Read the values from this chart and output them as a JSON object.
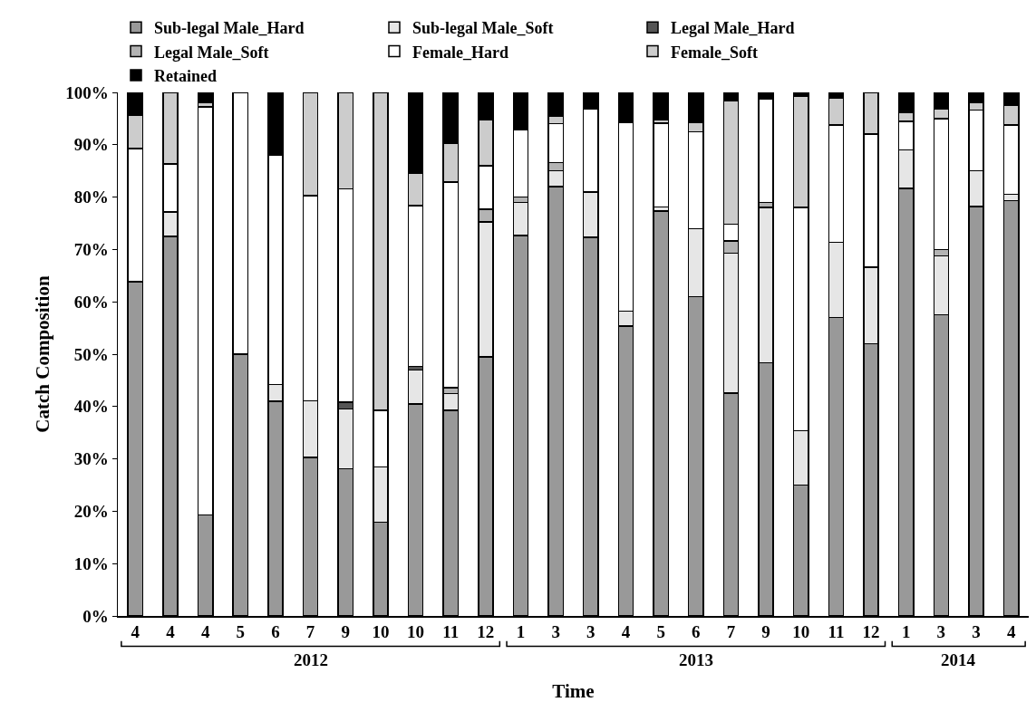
{
  "chart_data": {
    "type": "bar",
    "stacked": true,
    "xlabel": "Time",
    "ylabel": "Catch Composition",
    "categories": [
      "4",
      "4",
      "4",
      "5",
      "6",
      "7",
      "9",
      "10",
      "10",
      "11",
      "12",
      "1",
      "3",
      "3",
      "4",
      "5",
      "6",
      "7",
      "9",
      "10",
      "11",
      "12",
      "1",
      "3",
      "3",
      "4"
    ],
    "series": [
      {
        "name": "Sub-legal Male_Hard",
        "color": "#999999",
        "values": [
          63.8,
          72.5,
          19.3,
          50,
          41,
          30.3,
          28.1,
          17.9,
          40.5,
          39.3,
          49.5,
          72.7,
          82,
          72.3,
          55.4,
          77.3,
          61,
          42.6,
          48.4,
          25,
          57,
          52,
          81.7,
          57.5,
          78.2,
          79.3
        ]
      },
      {
        "name": "Sub-legal Male_Soft",
        "color": "#e6e6e6",
        "values": [
          null,
          4.7,
          null,
          null,
          3.2,
          10.8,
          11.4,
          10.6,
          6.5,
          3.2,
          25.8,
          6.3,
          3,
          8.7,
          2.8,
          0.8,
          13,
          26.7,
          29.6,
          10.4,
          14.4,
          14.6,
          7.3,
          11.3,
          6.8,
          1.2
        ]
      },
      {
        "name": "Legal Male_Hard",
        "color": "#555555",
        "values": [
          null,
          null,
          null,
          null,
          null,
          null,
          1.3,
          null,
          0.7,
          null,
          null,
          null,
          null,
          null,
          null,
          null,
          null,
          null,
          null,
          null,
          null,
          null,
          null,
          null,
          null,
          null
        ]
      },
      {
        "name": "Legal Male_Soft",
        "color": "#b3b3b3",
        "values": [
          null,
          null,
          null,
          null,
          null,
          null,
          null,
          null,
          null,
          1.1,
          2.4,
          1,
          1.6,
          null,
          null,
          null,
          null,
          2.3,
          1,
          null,
          null,
          null,
          null,
          1.2,
          null,
          null
        ]
      },
      {
        "name": "Female_Hard",
        "color": "#ffffff",
        "values": [
          25.5,
          9.1,
          77.9,
          50,
          43.9,
          39.2,
          40.8,
          10.8,
          30.7,
          39.3,
          8.3,
          12.8,
          7.4,
          15.9,
          36.1,
          16,
          18.5,
          3.2,
          19.8,
          42.6,
          22.4,
          25.4,
          5.5,
          25,
          11.6,
          13.3
        ]
      },
      {
        "name": "Female_Soft",
        "color": "#cccccc",
        "values": [
          6.4,
          13.7,
          0.8,
          null,
          null,
          19.7,
          18.4,
          60.7,
          6.1,
          7.4,
          8.8,
          null,
          1.4,
          null,
          null,
          0.7,
          1.8,
          23.6,
          null,
          21.2,
          5.1,
          8,
          1.7,
          1.8,
          1.5,
          3.7
        ]
      },
      {
        "name": "Retained",
        "color": "#000000",
        "values": [
          4.3,
          null,
          2,
          null,
          11.9,
          null,
          null,
          null,
          15.5,
          9.7,
          5.2,
          7.2,
          4.6,
          3.1,
          5.7,
          5.2,
          5.7,
          1.6,
          1.2,
          0.8,
          1.1,
          null,
          3.8,
          3.2,
          1.9,
          2.5
        ]
      }
    ],
    "ylim": [
      0,
      100
    ],
    "yticks": [
      {
        "value": 0,
        "label": "0%"
      },
      {
        "value": 10,
        "label": "10%"
      },
      {
        "value": 20,
        "label": "20%"
      },
      {
        "value": 30,
        "label": "30%"
      },
      {
        "value": 40,
        "label": "40%"
      },
      {
        "value": 50,
        "label": "50%"
      },
      {
        "value": 60,
        "label": "60%"
      },
      {
        "value": 70,
        "label": "70%"
      },
      {
        "value": 80,
        "label": "80%"
      },
      {
        "value": 90,
        "label": "90%"
      },
      {
        "value": 100,
        "label": "100%"
      }
    ],
    "grid": false,
    "legend": "top",
    "annotations": [
      "2012",
      "2013",
      "2014"
    ]
  }
}
